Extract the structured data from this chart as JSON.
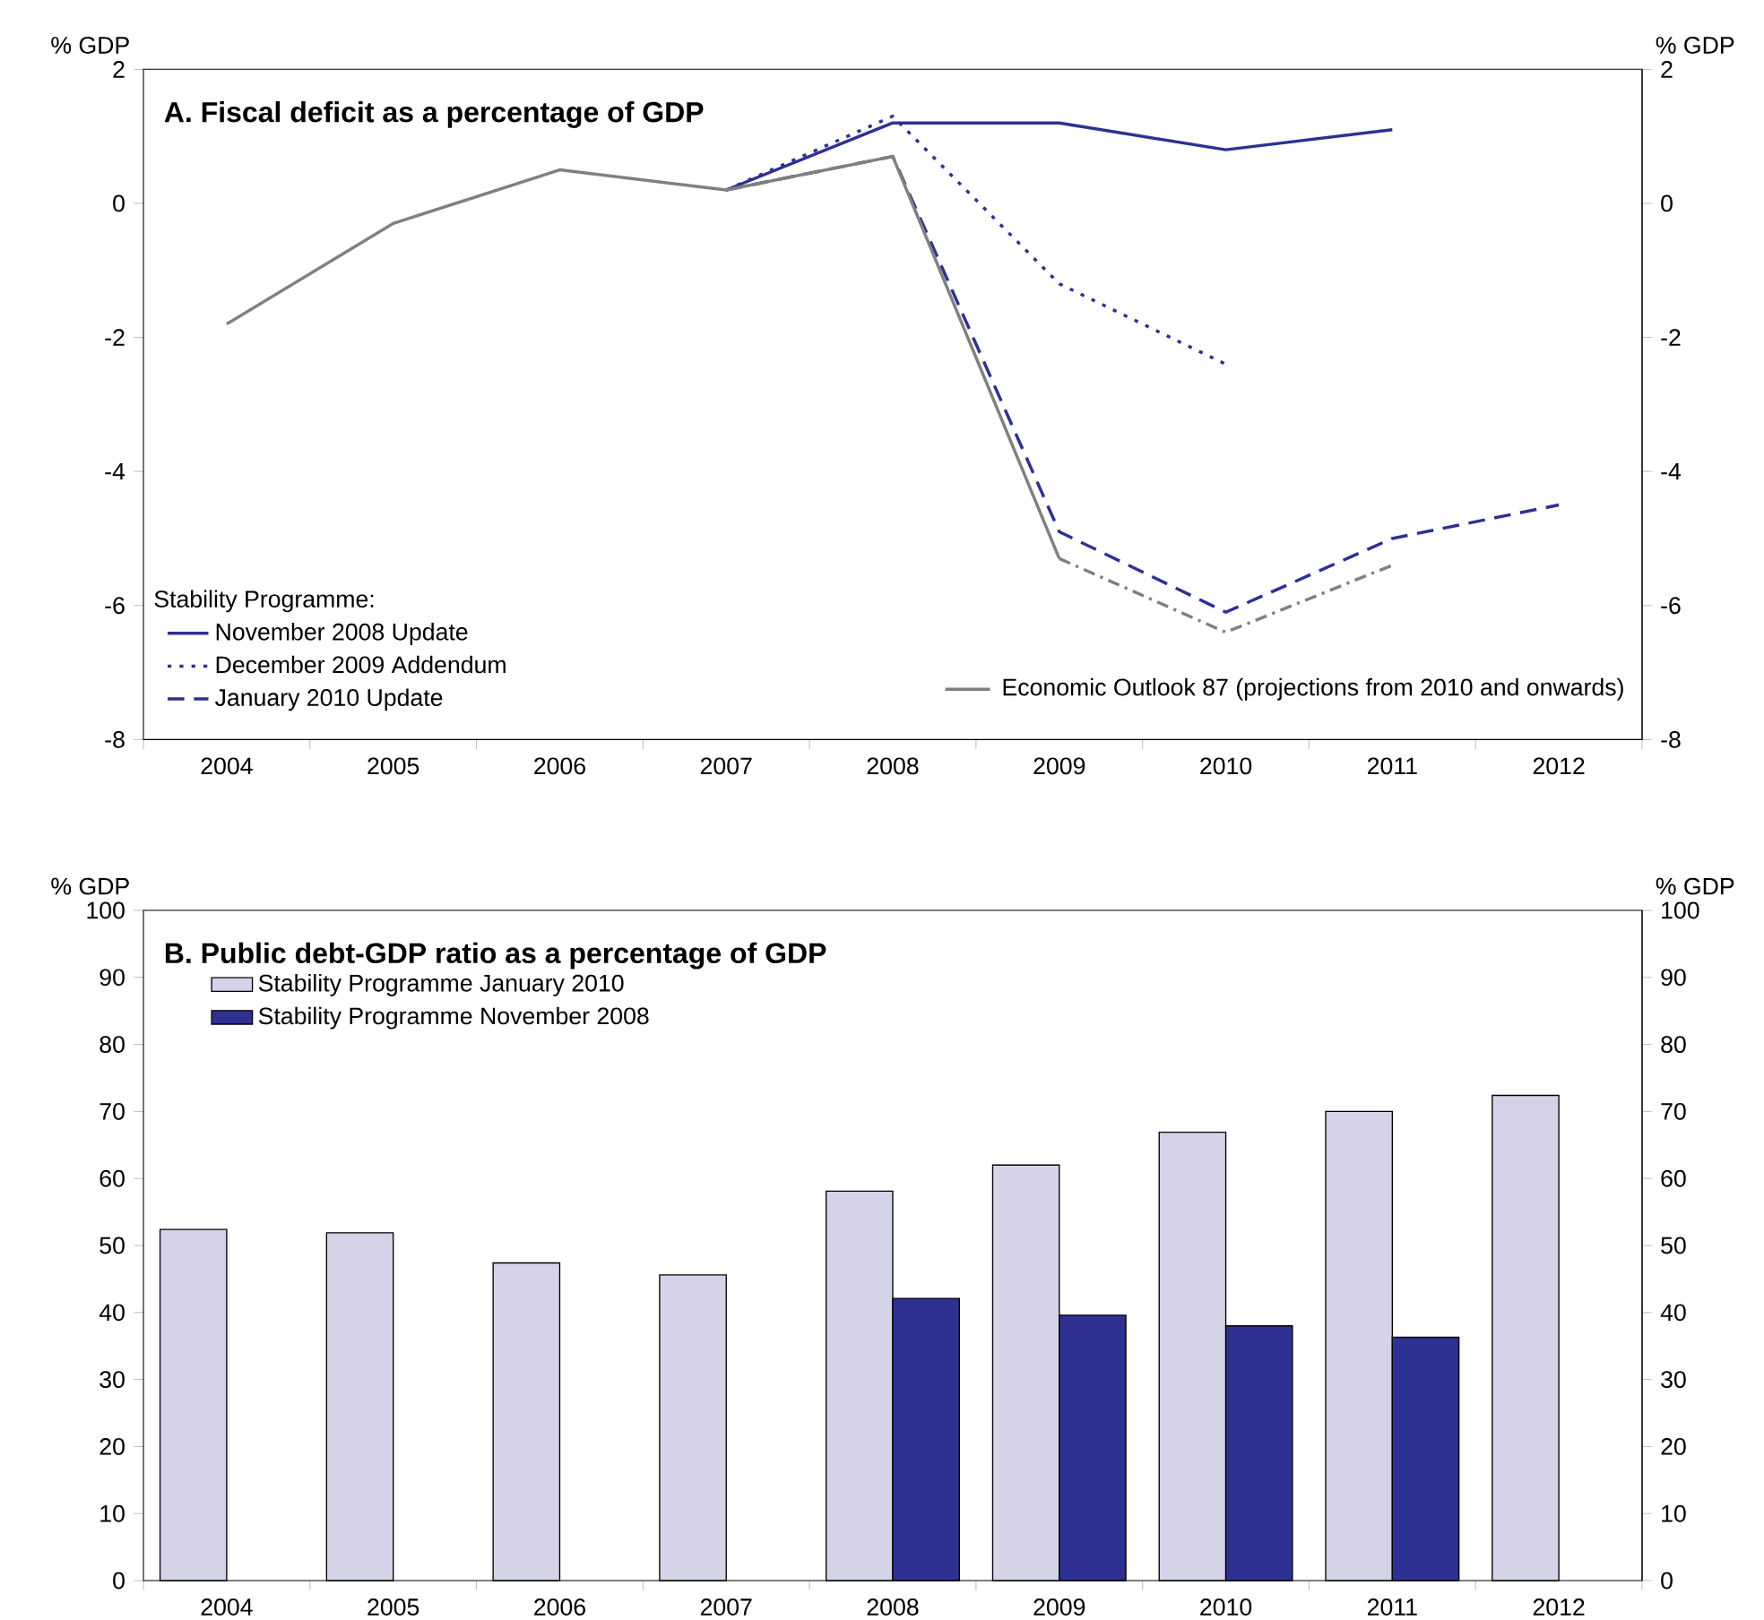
{
  "chart_data": [
    {
      "type": "line",
      "title": "A. Fiscal deficit as a percentage of GDP",
      "ylabel": "% GDP",
      "y2label": "% GDP",
      "legend_title": "Stability Programme:",
      "legend": "bottom",
      "categories": [
        "2004",
        "2005",
        "2006",
        "2007",
        "2008",
        "2009",
        "2010",
        "2011",
        "2012"
      ],
      "series": [
        {
          "name": "November 2008 Update",
          "color": "#2e3192",
          "line_style": "solid",
          "values": [
            null,
            null,
            null,
            0.2,
            1.2,
            1.2,
            0.8,
            1.1,
            null
          ]
        },
        {
          "name": "December 2009 Addendum",
          "color": "#2e3192",
          "line_style": "dotted",
          "values": [
            null,
            null,
            null,
            0.2,
            1.3,
            -1.2,
            -2.4,
            null,
            null
          ]
        },
        {
          "name": "January 2010 Update",
          "color": "#2e3192",
          "line_style": "dashed",
          "values": [
            null,
            null,
            null,
            0.2,
            0.7,
            -4.9,
            -6.1,
            -5.0,
            -4.5
          ]
        },
        {
          "name": "Economic Outlook 87 (projections from 2010 and onwards)",
          "color": "#808080",
          "line_style": "solid",
          "values": [
            -1.8,
            -0.3,
            0.5,
            0.2,
            0.7,
            -5.3,
            null,
            null,
            null
          ]
        },
        {
          "color": "#808080",
          "line_style": "dashdot",
          "values": [
            null,
            null,
            null,
            null,
            null,
            -5.3,
            -6.4,
            -5.4,
            null
          ]
        }
      ],
      "ylim": [
        -8,
        2
      ],
      "yticks": [
        -8,
        -6,
        -4,
        -2,
        0,
        2
      ],
      "y2lim": [
        -8,
        2
      ],
      "y2ticks": [
        -8,
        -6,
        -4,
        -2,
        0,
        2
      ]
    },
    {
      "type": "bar",
      "title": "B. Public debt-GDP ratio as a percentage of GDP",
      "ylabel": "% GDP",
      "y2label": "% GDP",
      "legend": "top left",
      "categories": [
        "2004",
        "2005",
        "2006",
        "2007",
        "2008",
        "2009",
        "2010",
        "2011",
        "2012"
      ],
      "series": [
        {
          "name": "Stability Programme January 2010",
          "color": "#d5d3e8",
          "values": [
            52.4,
            51.9,
            47.4,
            45.6,
            58.1,
            62.0,
            66.9,
            70.0,
            72.4
          ]
        },
        {
          "name": "Stability Programme November 2008",
          "color": "#2e3192",
          "values": [
            null,
            null,
            null,
            null,
            42.1,
            39.6,
            38.0,
            36.3,
            null
          ]
        }
      ],
      "ylim": [
        0,
        100
      ],
      "yticks": [
        0,
        10,
        20,
        30,
        40,
        50,
        60,
        70,
        80,
        90,
        100
      ],
      "y2lim": [
        0,
        100
      ],
      "y2ticks": [
        0,
        10,
        20,
        30,
        40,
        50,
        60,
        70,
        80,
        90,
        100
      ]
    }
  ]
}
